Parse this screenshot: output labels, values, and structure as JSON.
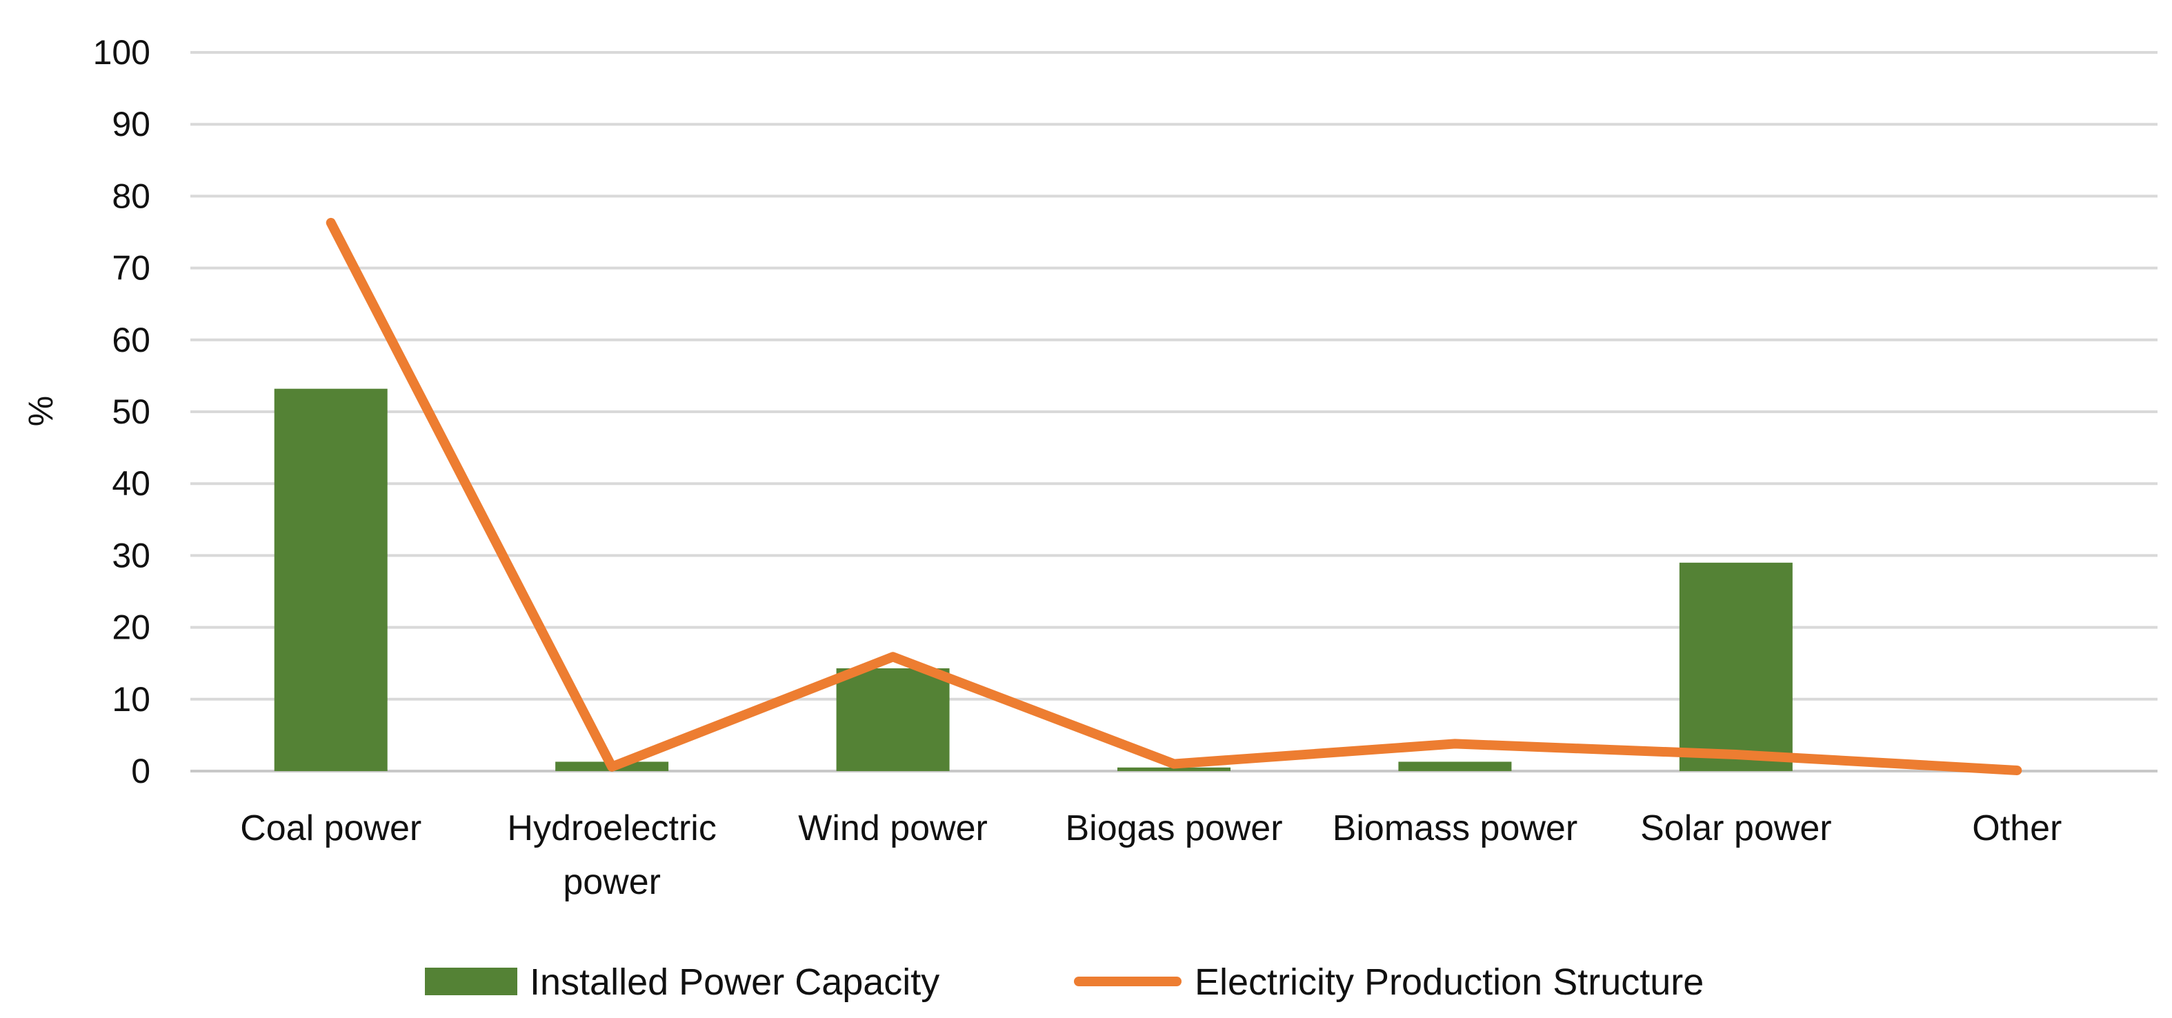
{
  "chart_data": {
    "type": "bar",
    "title": "",
    "xlabel": "",
    "ylabel": "%",
    "ylim": [
      0,
      100
    ],
    "yticks": [
      0,
      10,
      20,
      30,
      40,
      50,
      60,
      70,
      80,
      90,
      100
    ],
    "grid": true,
    "legend_position": "bottom",
    "categories": [
      [
        "Coal power"
      ],
      [
        "Hydroelectric",
        "power"
      ],
      [
        "Wind power"
      ],
      [
        "Biogas power"
      ],
      [
        "Biomass power"
      ],
      [
        "Solar power"
      ],
      [
        "Other"
      ]
    ],
    "series": [
      {
        "name": "Installed Power Capacity",
        "type": "bar",
        "color": "#548235",
        "values": [
          53.2,
          1.3,
          14.3,
          0.5,
          1.3,
          29.0,
          0
        ]
      },
      {
        "name": "Electricity Production Structure",
        "type": "line",
        "color": "#ED7D31",
        "values": [
          76.3,
          0.6,
          15.9,
          1.0,
          3.8,
          2.3,
          0.1
        ]
      }
    ]
  }
}
